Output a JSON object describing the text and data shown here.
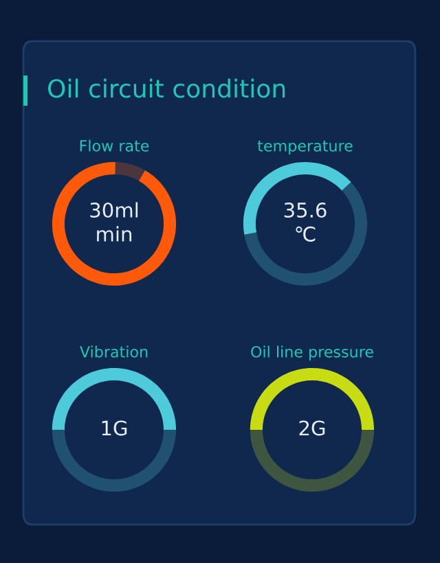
{
  "chart_data": [
    {
      "type": "other",
      "title": "Oil circuit condition"
    },
    {
      "type": "donut",
      "title": "Flow rate",
      "categories": [
        null,
        null
      ],
      "values": [
        92,
        8
      ],
      "colors": [
        "#ff5a0a",
        "#ff5a0a"
      ],
      "annotations": [
        "30ml\nmin"
      ]
    },
    {
      "type": "donut",
      "title": "temperature",
      "categories": [
        null,
        null
      ],
      "values": [
        41,
        59
      ],
      "colors": [
        "#4ecbdb",
        "#4ecbdb"
      ],
      "annotations": [
        "35.6\n℃"
      ]
    },
    {
      "type": "donut",
      "title": "Vibration",
      "categories": [
        null,
        null
      ],
      "values": [
        50,
        50
      ],
      "colors": [
        "#4ecbdb",
        "#4ecbdb"
      ],
      "annotations": [
        "1G"
      ]
    },
    {
      "type": "donut",
      "title": "Oil line pressure",
      "categories": [
        null,
        null
      ],
      "values": [
        50,
        50
      ],
      "colors": [
        "#c8dc14",
        "#c8dc14"
      ],
      "annotations": [
        "2G"
      ]
    }
  ]
}
